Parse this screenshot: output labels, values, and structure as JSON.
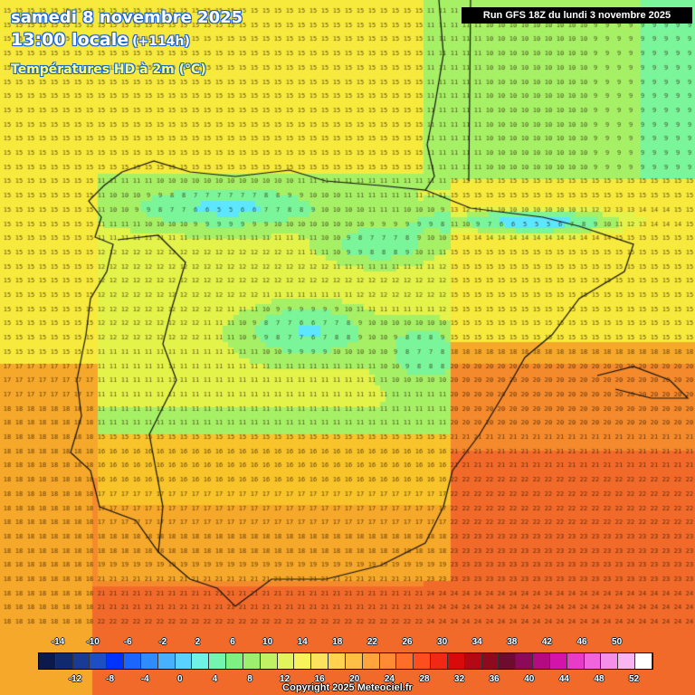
{
  "header": {
    "date_line": "samedi 8 novembre 2025",
    "time_line": "13:00 locale",
    "lead_time": "(+114h)",
    "parameter": "Températures HD à 2m (°C)"
  },
  "run_info": "Run GFS 18Z du lundi 3 novembre 2025",
  "copyright": "Copyright 2025 Meteociel.fr",
  "legend": {
    "top_labels": [
      "-14",
      "-10",
      "-6",
      "-2",
      "2",
      "6",
      "10",
      "14",
      "18",
      "22",
      "26",
      "30",
      "34",
      "38",
      "42",
      "46",
      "50"
    ],
    "bottom_labels": [
      "-12",
      "-8",
      "-4",
      "0",
      "4",
      "8",
      "12",
      "16",
      "20",
      "24",
      "28",
      "32",
      "36",
      "40",
      "44",
      "48",
      "52"
    ],
    "colors": [
      "#0b1a4a",
      "#0f2a6e",
      "#183c96",
      "#1d4fc4",
      "#0033ff",
      "#1a66ff",
      "#2f8cff",
      "#47b0ff",
      "#5ad2ff",
      "#6ef2e6",
      "#73f5b0",
      "#7df282",
      "#9cf06e",
      "#c0f264",
      "#e2f45c",
      "#f7f45a",
      "#fbe35e",
      "#ffd250",
      "#ffbe46",
      "#ffa53c",
      "#ff8c32",
      "#ff6e28",
      "#ff4e1e",
      "#f02814",
      "#d80a0a",
      "#b40814",
      "#8e0a1e",
      "#6e0c30",
      "#8c0a5a",
      "#b40a82",
      "#d214aa",
      "#e63cc8",
      "#f064dc",
      "#f590ea",
      "#fab4f0",
      "#ffffff"
    ]
  },
  "colors": {
    "cool": "#69e96a",
    "mild": "#e9ee3c",
    "warm": "#f7b820",
    "hot": "#f2862a"
  },
  "temperature_grid_note": ""
}
